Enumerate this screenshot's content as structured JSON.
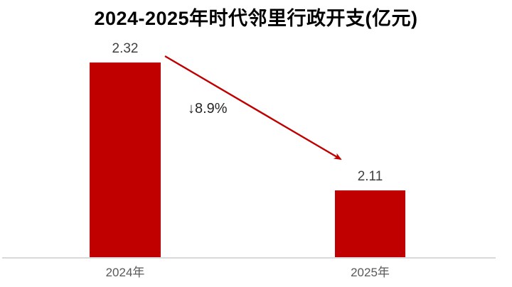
{
  "chart": {
    "title": "2024-2025年时代邻里行政开支(亿元)",
    "bars": [
      {
        "category": "2024年",
        "value_label": "2.32"
      },
      {
        "category": "2025年",
        "value_label": "2.11"
      }
    ],
    "annotation": "↓8.9%",
    "colors": {
      "bar": "#c00000",
      "arrow": "#c00000",
      "axis_line": "#d9d9d9",
      "title_text": "#000000",
      "value_text": "#404040",
      "category_text": "#595959",
      "annotation_text": "#262626"
    }
  },
  "chart_data": {
    "type": "bar",
    "title": "2024-2025年时代邻里行政开支(亿元)",
    "categories": [
      "2024年",
      "2025年"
    ],
    "values": [
      2.32,
      2.11
    ],
    "data_labels": [
      "2.32",
      "2.11"
    ],
    "annotation": "↓8.9%",
    "xlabel": "",
    "ylabel": "",
    "ylim": [
      2.0,
      2.35
    ],
    "grid": false,
    "legend": false,
    "bar_color": "#c00000"
  }
}
